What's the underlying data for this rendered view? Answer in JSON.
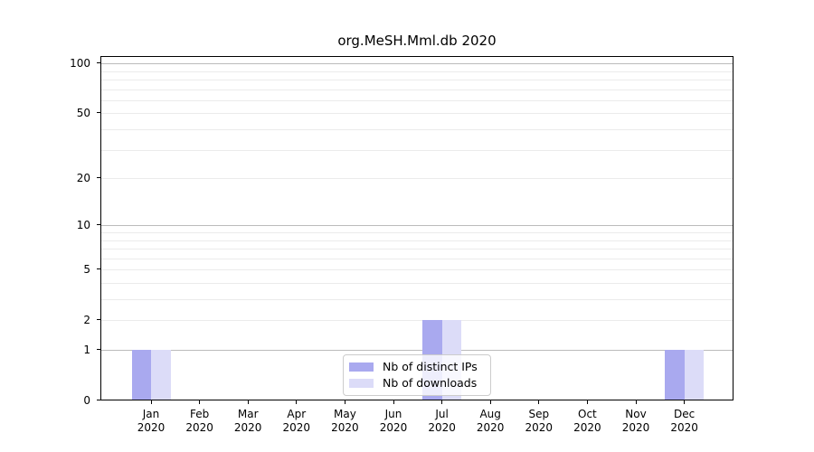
{
  "chart_data": {
    "type": "bar",
    "title": "org.MeSH.Mml.db 2020",
    "categories": [
      "Jan",
      "Feb",
      "Mar",
      "Apr",
      "May",
      "Jun",
      "Jul",
      "Aug",
      "Sep",
      "Oct",
      "Nov",
      "Dec"
    ],
    "category_year": "2020",
    "series": [
      {
        "name": "Nb of distinct IPs",
        "color": "#a9a9ef",
        "values": [
          1,
          0,
          0,
          0,
          0,
          0,
          2,
          0,
          0,
          0,
          0,
          1
        ]
      },
      {
        "name": "Nb of downloads",
        "color": "#dcdcf8",
        "values": [
          1,
          0,
          0,
          0,
          0,
          0,
          2,
          0,
          0,
          0,
          0,
          1
        ]
      }
    ],
    "xlabel": "",
    "ylabel": "",
    "y_axis": {
      "scale": "log10(1+x)",
      "tick_values": [
        0,
        1,
        2,
        5,
        10,
        20,
        50,
        100
      ],
      "tick_labels": [
        "0",
        "1",
        "2",
        "5",
        "10",
        "20",
        "50",
        "100"
      ],
      "major_gridlines": [
        1,
        10,
        100
      ],
      "minor_gridlines": [
        2,
        3,
        4,
        5,
        6,
        7,
        8,
        9,
        20,
        30,
        40,
        50,
        60,
        70,
        80,
        90
      ],
      "ylim_top_value": 110
    },
    "legend": {
      "position": "lower-center",
      "background": "rgba(255,255,255,0.8)"
    },
    "grid": "horizontal-only",
    "colors": {
      "major_grid": "#bbbbbb",
      "minor_grid": "#ebebeb",
      "spine": "#000000"
    }
  }
}
